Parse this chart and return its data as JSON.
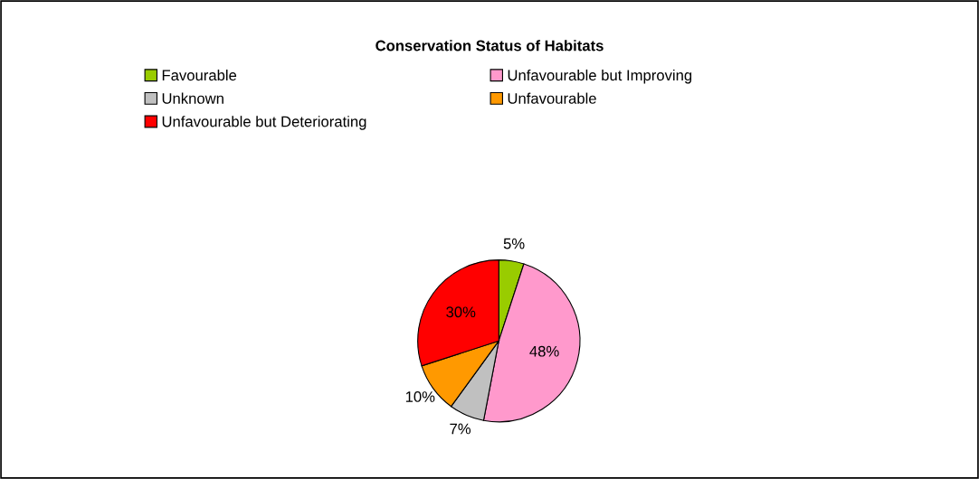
{
  "chart_data": {
    "type": "pie",
    "title": "Conservation Status of Habitats",
    "categories": [
      "Favourable",
      "Unfavourable but Improving",
      "Unknown",
      "Unfavourable",
      "Unfavourable but Deteriorating"
    ],
    "values": [
      5,
      48,
      7,
      10,
      30
    ],
    "colors": [
      "#99cc00",
      "#ff99cc",
      "#c0c0c0",
      "#ff9900",
      "#ff0000"
    ],
    "value_labels": [
      "5%",
      "48%",
      "7%",
      "10%",
      "30%"
    ],
    "legend": "top"
  }
}
